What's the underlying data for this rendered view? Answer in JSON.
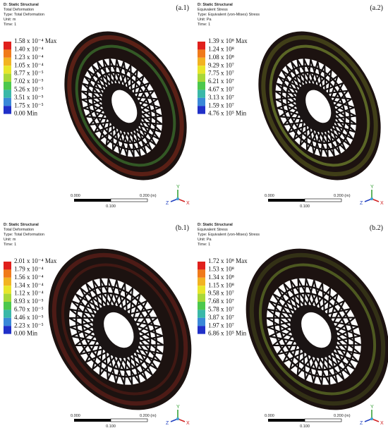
{
  "panels": [
    {
      "label": "(a.1)",
      "header": [
        "D: Static Structural",
        "Total Deformation",
        "Type: Total Deformation",
        "Unit: m",
        "Time: 1"
      ],
      "legend": [
        "1.58 x 10⁻⁴ Max",
        "1.40 x 10⁻⁴",
        "1.23 x 10⁻⁴",
        "1.05 x 10⁻⁴",
        "8.77 x 10⁻⁵",
        "7.02 x 10⁻⁵",
        "5.26 x 10⁻⁵",
        "3.51 x 10⁻⁵",
        "1.75 x 10⁻⁵",
        "0.00 Min"
      ],
      "scale": {
        "start": "0.000",
        "end": "0.200 (m)",
        "mid": "0.100"
      },
      "axes": {
        "y": "Y",
        "z": "Z",
        "x": "X"
      }
    },
    {
      "label": "(a.2)",
      "header": [
        "D: Static Structural",
        "Equivalent Stress",
        "Type: Equivalent (von-Mises) Stress",
        "Unit: Pa",
        "Time: 1"
      ],
      "legend": [
        "1.39 x 10⁸ Max",
        "1.24 x 10⁸",
        "1.08 x 10⁸",
        "9.29 x 10⁷",
        "7.75 x 10⁷",
        "6.21 x 10⁷",
        "4.67 x 10⁷",
        "3.13 x 10⁷",
        "1.59 x 10⁷",
        "4.76 x 10⁵ Min"
      ],
      "scale": {
        "start": "0.000",
        "end": "0.200 (m)",
        "mid": "0.100"
      },
      "axes": {
        "y": "Y",
        "z": "Z",
        "x": "X"
      }
    },
    {
      "label": "(b.1)",
      "header": [
        "D: Static Structural",
        "Total Deformation",
        "Type: Total Deformation",
        "Unit: m",
        "Time: 1"
      ],
      "legend": [
        "2.01 x 10⁻⁴ Max",
        "1.79 x 10⁻⁴",
        "1.56 x 10⁻⁴",
        "1.34 x 10⁻⁴",
        "1.12 x 10⁻⁴",
        "8.93 x 10⁻⁵",
        "6.70 x 10⁻⁵",
        "4.46 x 10⁻⁵",
        "2.23 x 10⁻⁵",
        "0.00 Min"
      ],
      "scale": {
        "start": "0.000",
        "end": "0.200 (m)",
        "mid": "0.100"
      },
      "axes": {
        "y": "Y",
        "z": "Z",
        "x": "X"
      }
    },
    {
      "label": "(b.2)",
      "header": [
        "D: Static Structural",
        "Equivalent Stress",
        "Type: Equivalent (von-Mises) Stress",
        "Unit: Pa",
        "Time: 1"
      ],
      "legend": [
        "1.72 x 10⁸ Max",
        "1.53 x 10⁸",
        "1.34 x 10⁸",
        "1.15 x 10⁸",
        "9.58 x 10⁷",
        "7.68 x 10⁷",
        "5.78 x 10⁷",
        "3.87 x 10⁷",
        "1.97 x 10⁷",
        "6.86 x 10⁵ Min"
      ],
      "scale": {
        "start": "0.000",
        "end": "0.200 (m)",
        "mid": "0.100"
      },
      "axes": {
        "y": "Y",
        "z": "Z",
        "x": "X"
      }
    }
  ]
}
